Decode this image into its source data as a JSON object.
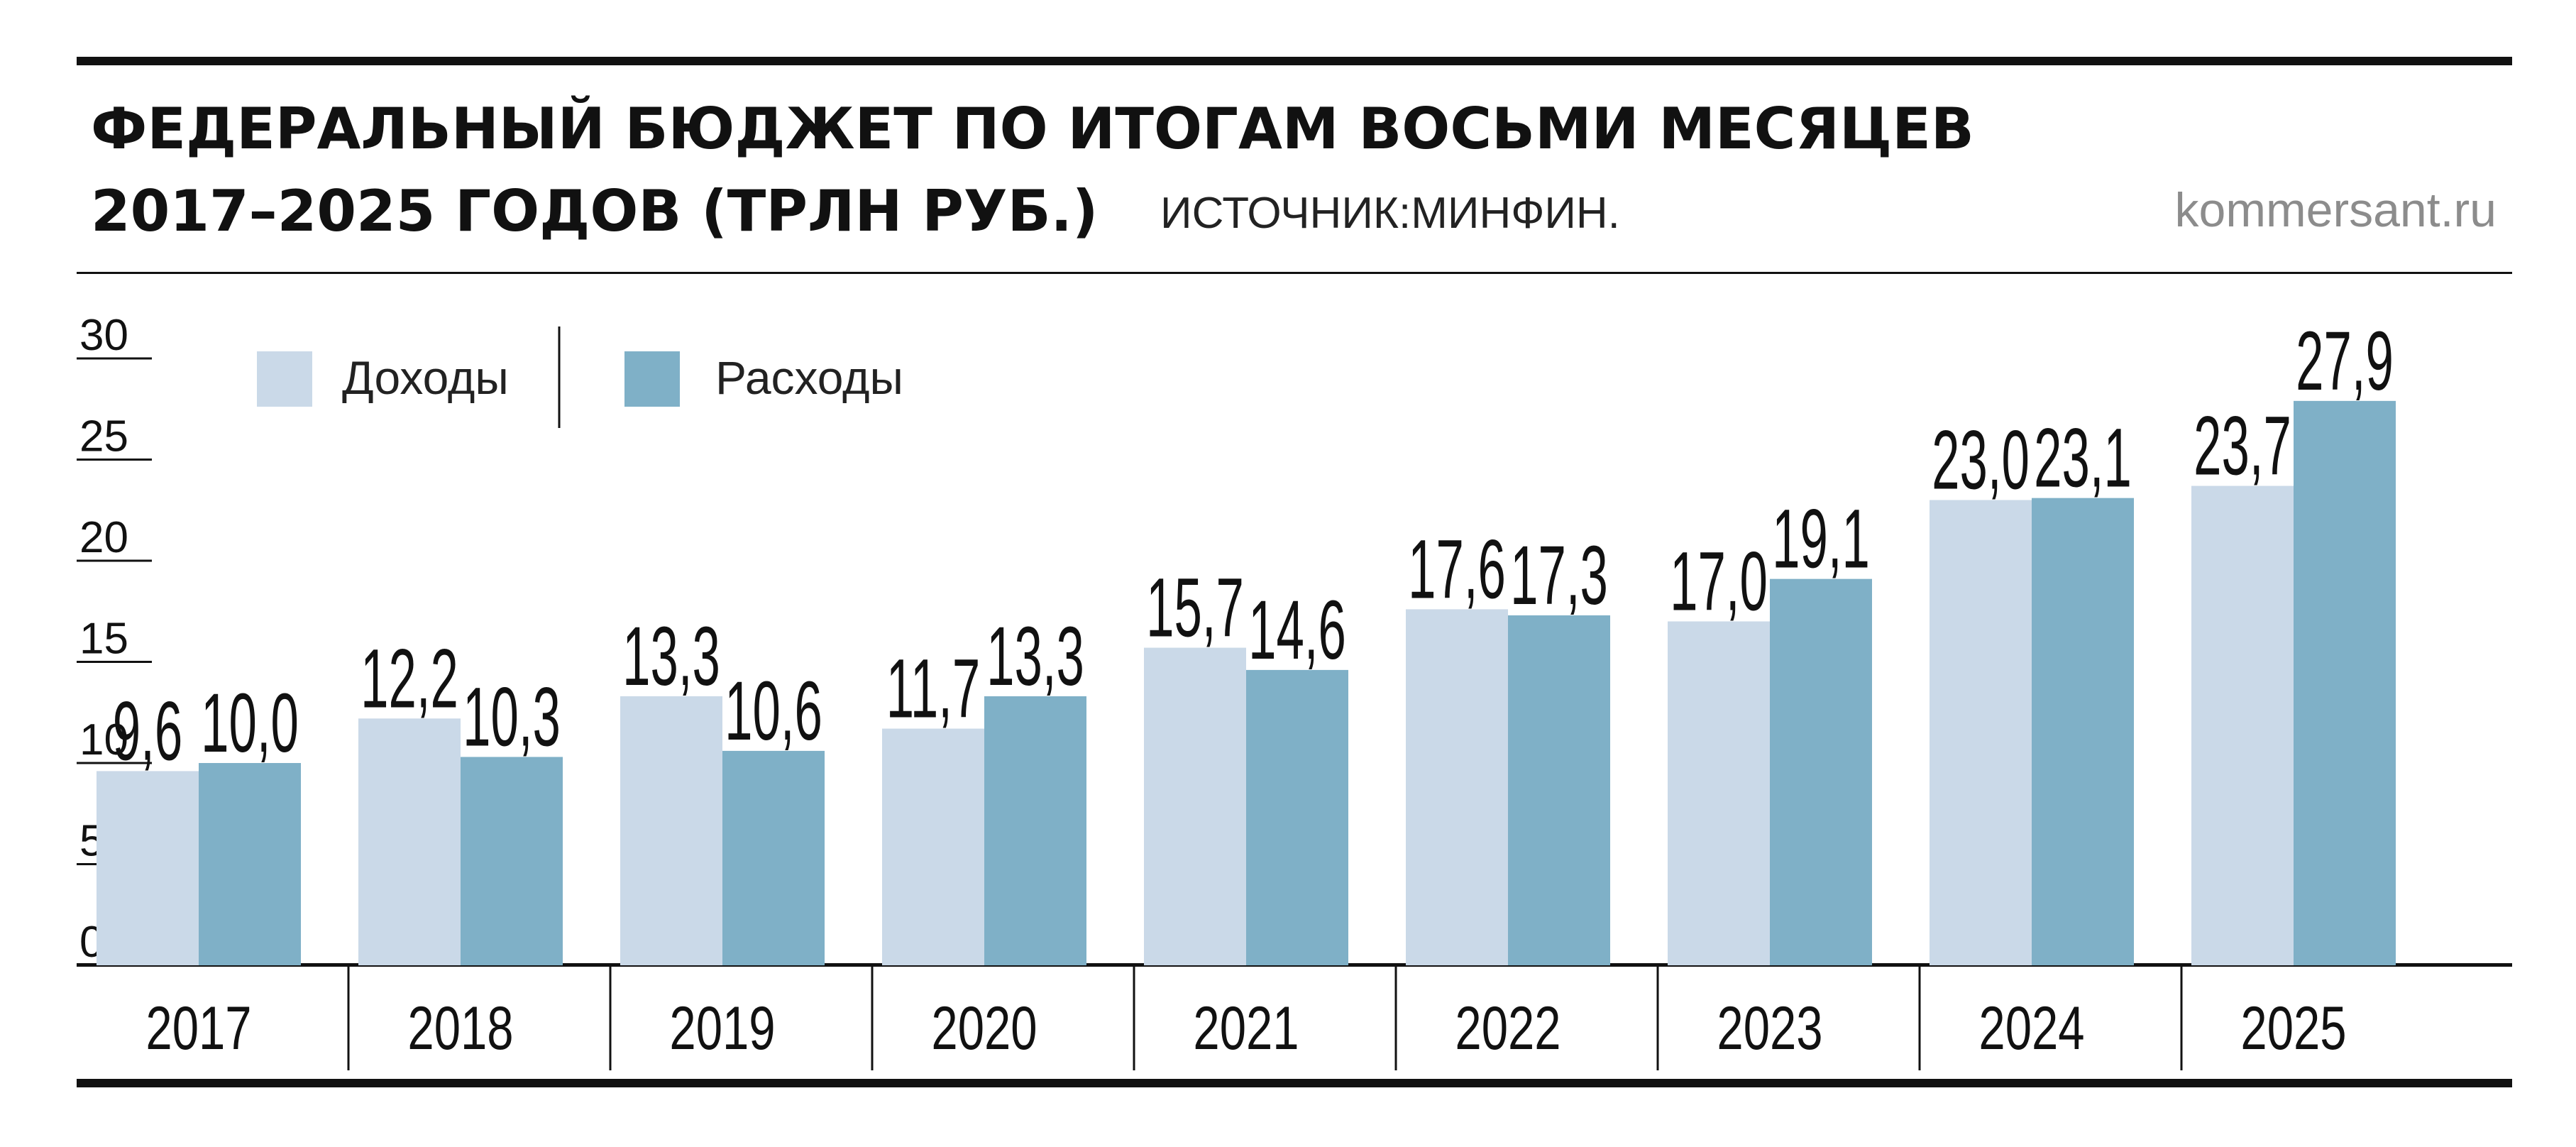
{
  "header": {
    "title_line1": "ФЕДЕРАЛЬНЫЙ БЮДЖЕТ ПО ИТОГАМ ВОСЬМИ МЕСЯЦЕВ",
    "title_line2": "2017–2025 ГОДОВ (ТРЛН РУБ.)",
    "source": "ИСТОЧНИК:МИНФИН.",
    "site": "kommersant.ru"
  },
  "chart_data": {
    "type": "bar",
    "categories": [
      "2017",
      "2018",
      "2019",
      "2020",
      "2021",
      "2022",
      "2023",
      "2024",
      "2025"
    ],
    "series": [
      {
        "name": "Доходы",
        "color": "#cad9e8",
        "values": [
          9.6,
          12.2,
          13.3,
          11.7,
          15.7,
          17.6,
          17.0,
          23.0,
          23.7
        ],
        "labels": [
          "9,6",
          "12,2",
          "13,3",
          "11,7",
          "15,7",
          "17,6",
          "17,0",
          "23,0",
          "23,7"
        ]
      },
      {
        "name": "Расходы",
        "color": "#7fb0c7",
        "values": [
          10.0,
          10.3,
          10.6,
          13.3,
          14.6,
          17.3,
          19.1,
          23.1,
          27.9
        ],
        "labels": [
          "10,0",
          "10,3",
          "10,6",
          "13,3",
          "14,6",
          "17,3",
          "19,1",
          "23,1",
          "27,9"
        ]
      }
    ],
    "y_ticks": [
      0,
      5,
      10,
      15,
      20,
      25,
      30
    ],
    "ylim": [
      0,
      30
    ],
    "legend_position": "top-left",
    "grid": false
  }
}
